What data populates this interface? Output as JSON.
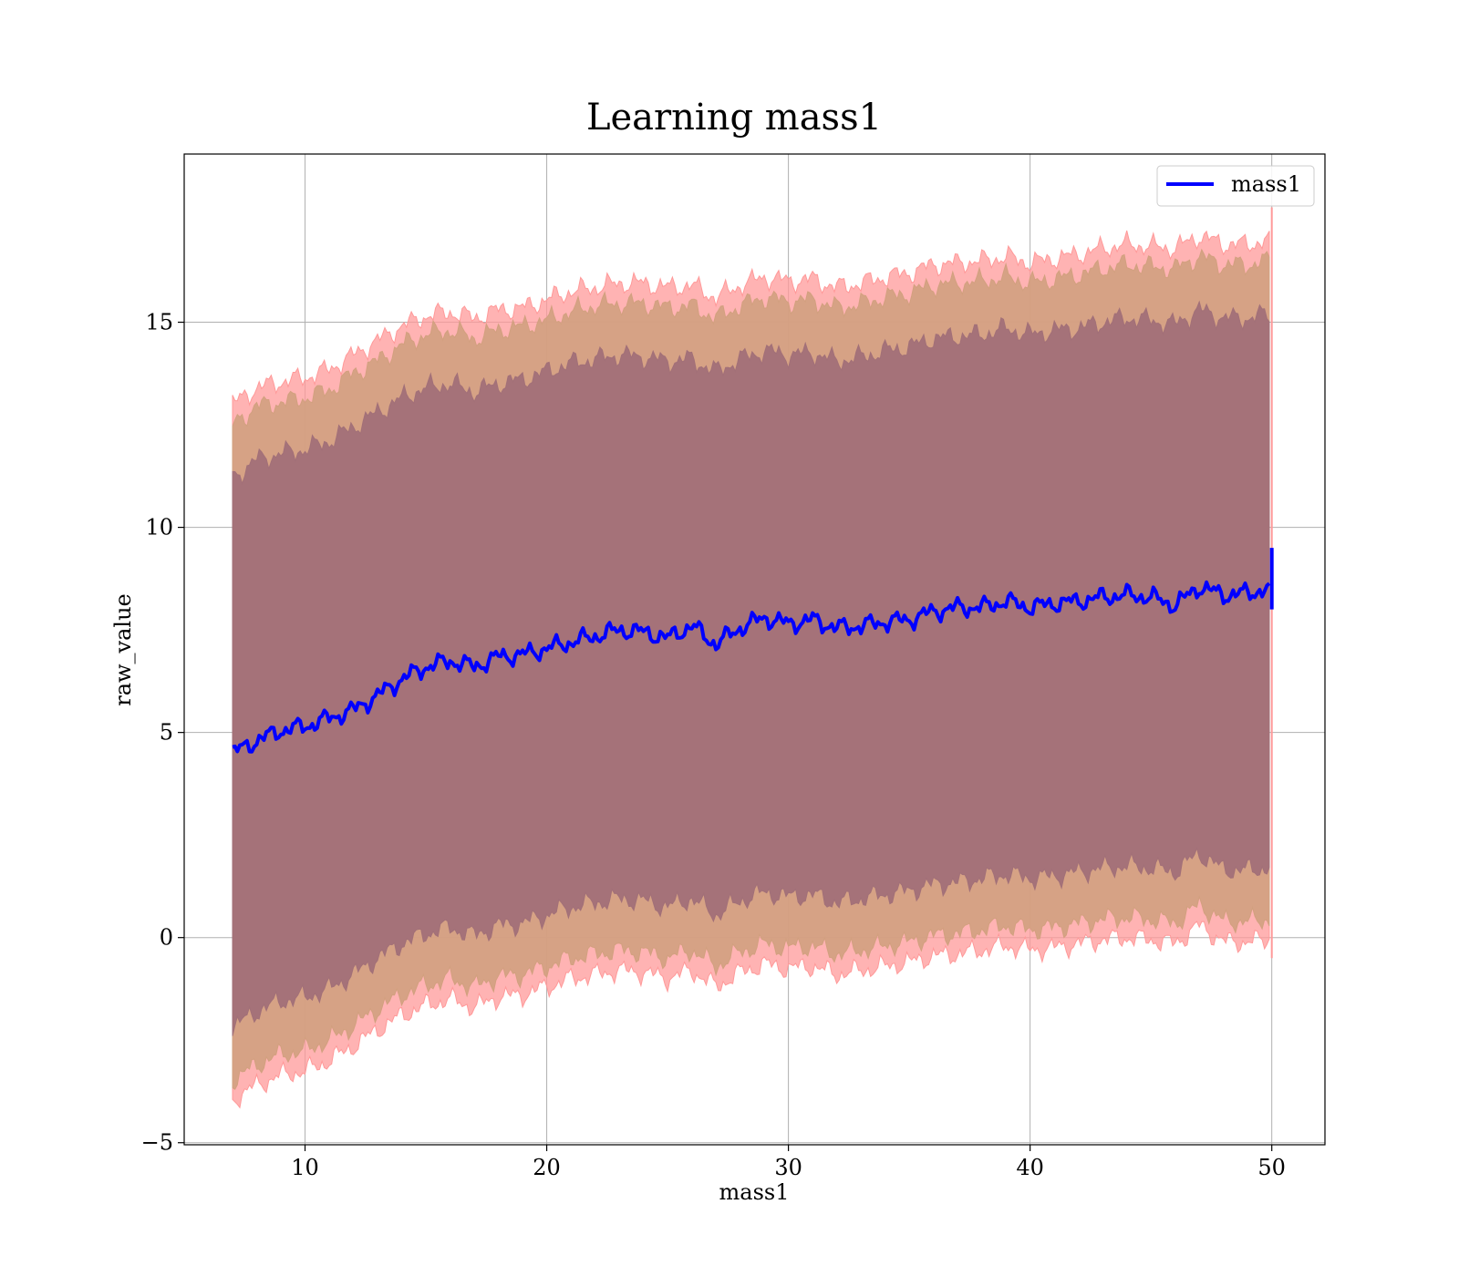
{
  "chart_data": {
    "type": "area",
    "title": "Learning mass1",
    "xlabel": "mass1",
    "ylabel": "raw_value",
    "xlim": [
      5,
      52.2
    ],
    "ylim": [
      -5.05,
      19.1
    ],
    "xticks": [
      10,
      20,
      30,
      40,
      50
    ],
    "yticks": [
      -5,
      0,
      5,
      10,
      15
    ],
    "ytick_labels": [
      "−5",
      "0",
      "5",
      "10",
      "15"
    ],
    "grid": true,
    "legend": {
      "position": "top-right",
      "entries": [
        "mass1"
      ]
    },
    "x": [
      7.0,
      8.0,
      9.0,
      10.0,
      11.0,
      12.0,
      13.0,
      14.0,
      15.0,
      16.0,
      17.0,
      18.0,
      19.0,
      20.0,
      21.0,
      22.0,
      23.0,
      24.0,
      25.0,
      26.0,
      27.0,
      28.0,
      29.0,
      30.0,
      31.0,
      32.0,
      33.0,
      34.0,
      35.0,
      36.0,
      37.0,
      38.0,
      39.0,
      40.0,
      41.0,
      42.0,
      43.0,
      44.0,
      45.0,
      46.0,
      47.0,
      48.0,
      49.0,
      49.9
    ],
    "series": [
      {
        "name": "mass1",
        "color": "#0000ff",
        "values": [
          4.5,
          4.8,
          5.05,
          5.15,
          5.35,
          5.55,
          5.9,
          6.3,
          6.6,
          6.75,
          6.6,
          6.85,
          6.9,
          7.05,
          7.2,
          7.35,
          7.5,
          7.45,
          7.3,
          7.6,
          7.15,
          7.55,
          7.8,
          7.65,
          7.75,
          7.55,
          7.6,
          7.7,
          7.75,
          7.95,
          8.05,
          8.05,
          8.2,
          8.05,
          8.15,
          8.2,
          8.3,
          8.35,
          8.3,
          8.1,
          8.55,
          8.35,
          8.4,
          8.5
        ]
      }
    ],
    "bands": [
      {
        "level": "outer",
        "color": "#ff9999",
        "upper": [
          13.0,
          13.4,
          13.55,
          13.65,
          13.85,
          14.2,
          14.55,
          14.9,
          15.15,
          15.25,
          15.1,
          15.3,
          15.35,
          15.55,
          15.75,
          15.85,
          15.95,
          15.95,
          15.85,
          15.9,
          15.6,
          15.9,
          16.1,
          16.0,
          16.05,
          15.85,
          15.95,
          16.1,
          16.2,
          16.4,
          16.45,
          16.5,
          16.6,
          16.45,
          16.55,
          16.65,
          16.8,
          16.9,
          16.85,
          16.8,
          17.1,
          16.9,
          16.9,
          17.0
        ],
        "lower": [
          -3.95,
          -3.6,
          -3.35,
          -3.25,
          -3.0,
          -2.65,
          -2.25,
          -1.9,
          -1.65,
          -1.5,
          -1.7,
          -1.45,
          -1.4,
          -1.2,
          -1.0,
          -0.9,
          -0.8,
          -0.85,
          -1.0,
          -0.8,
          -1.2,
          -0.85,
          -0.65,
          -0.75,
          -0.7,
          -0.9,
          -0.8,
          -0.7,
          -0.6,
          -0.45,
          -0.4,
          -0.3,
          -0.2,
          -0.3,
          -0.25,
          -0.15,
          -0.05,
          0.0,
          -0.05,
          -0.15,
          0.3,
          -0.1,
          -0.1,
          -0.05
        ]
      },
      {
        "level": "middle",
        "color": "#d2a07f",
        "upper": [
          12.5,
          12.95,
          13.05,
          13.15,
          13.35,
          13.75,
          14.05,
          14.45,
          14.7,
          14.8,
          14.6,
          14.8,
          14.9,
          15.05,
          15.25,
          15.4,
          15.45,
          15.45,
          15.35,
          15.4,
          15.1,
          15.4,
          15.6,
          15.5,
          15.55,
          15.35,
          15.45,
          15.6,
          15.7,
          15.9,
          15.95,
          16.0,
          16.1,
          15.95,
          16.05,
          16.15,
          16.3,
          16.4,
          16.35,
          16.3,
          16.6,
          16.4,
          16.4,
          16.5
        ],
        "lower": [
          -3.5,
          -3.1,
          -2.85,
          -2.75,
          -2.5,
          -2.15,
          -1.75,
          -1.4,
          -1.15,
          -1.0,
          -1.2,
          -0.95,
          -0.9,
          -0.7,
          -0.5,
          -0.4,
          -0.3,
          -0.35,
          -0.5,
          -0.3,
          -0.7,
          -0.35,
          -0.15,
          -0.25,
          -0.2,
          -0.4,
          -0.3,
          -0.2,
          -0.1,
          0.05,
          0.1,
          0.2,
          0.3,
          0.2,
          0.25,
          0.35,
          0.45,
          0.5,
          0.45,
          0.35,
          0.8,
          0.4,
          0.4,
          0.45
        ]
      },
      {
        "level": "inner",
        "color": "#a27078",
        "upper": [
          11.2,
          11.65,
          11.8,
          11.9,
          12.1,
          12.45,
          12.8,
          13.15,
          13.4,
          13.5,
          13.3,
          13.5,
          13.6,
          13.8,
          14.0,
          14.1,
          14.2,
          14.15,
          14.05,
          14.1,
          13.8,
          14.1,
          14.3,
          14.2,
          14.25,
          14.05,
          14.15,
          14.3,
          14.4,
          14.6,
          14.65,
          14.7,
          14.85,
          14.7,
          14.8,
          14.85,
          15.0,
          15.1,
          15.05,
          14.95,
          15.3,
          15.1,
          15.1,
          15.2
        ],
        "lower": [
          -2.2,
          -1.8,
          -1.55,
          -1.45,
          -1.25,
          -0.9,
          -0.5,
          -0.15,
          0.1,
          0.25,
          0.05,
          0.3,
          0.35,
          0.55,
          0.75,
          0.85,
          0.95,
          0.9,
          0.75,
          0.95,
          0.55,
          0.9,
          1.1,
          1.0,
          1.05,
          0.85,
          0.95,
          1.05,
          1.15,
          1.3,
          1.35,
          1.45,
          1.55,
          1.45,
          1.5,
          1.6,
          1.7,
          1.75,
          1.7,
          1.6,
          2.05,
          1.65,
          1.65,
          1.7
        ]
      }
    ],
    "end_spike": {
      "x": 50.0,
      "mean_range": [
        8.0,
        9.5
      ],
      "outer_range": [
        -0.5,
        17.8
      ]
    }
  }
}
